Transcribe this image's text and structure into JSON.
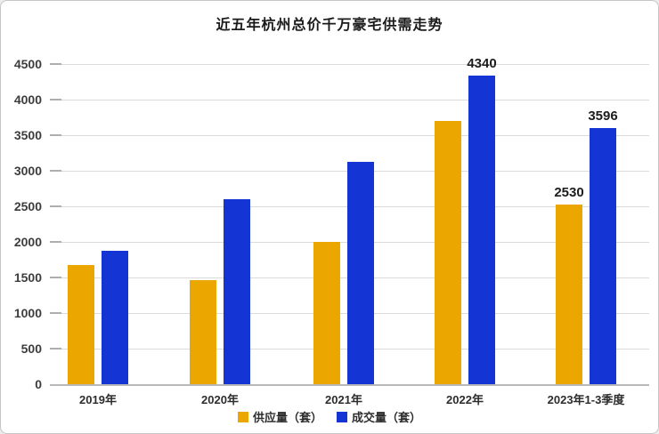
{
  "title": "近五年杭州总价千万豪宅供需走势",
  "colors": {
    "supply": "#EBA700",
    "deals": "#1435D3",
    "grid": "#DBDBDB",
    "axis": "#B9B9B9",
    "tick_text": "#3D3D3D",
    "value_label_text": "#1C1C1C"
  },
  "chart_data": {
    "type": "bar",
    "title": "近五年杭州总价千万豪宅供需走势",
    "categories": [
      "2019年",
      "2020年",
      "2021年",
      "2022年",
      "2023年1-3季度"
    ],
    "series": [
      {
        "name": "供应量（套）",
        "color_key": "supply",
        "values": [
          1680,
          1460,
          2000,
          3700,
          2530
        ],
        "shown_labels": [
          "",
          "",
          "",
          "",
          "2530"
        ]
      },
      {
        "name": "成交量（套）",
        "color_key": "deals",
        "values": [
          1880,
          2600,
          3120,
          4340,
          3596
        ],
        "shown_labels": [
          "",
          "",
          "",
          "4340",
          "3596"
        ]
      }
    ],
    "xlabel": "",
    "ylabel": "",
    "ylim": [
      0,
      4500
    ],
    "yticks": [
      0,
      500,
      1000,
      1500,
      2000,
      2500,
      3000,
      3500,
      4000,
      4500
    ],
    "grid": true,
    "legend_position": "bottom"
  }
}
